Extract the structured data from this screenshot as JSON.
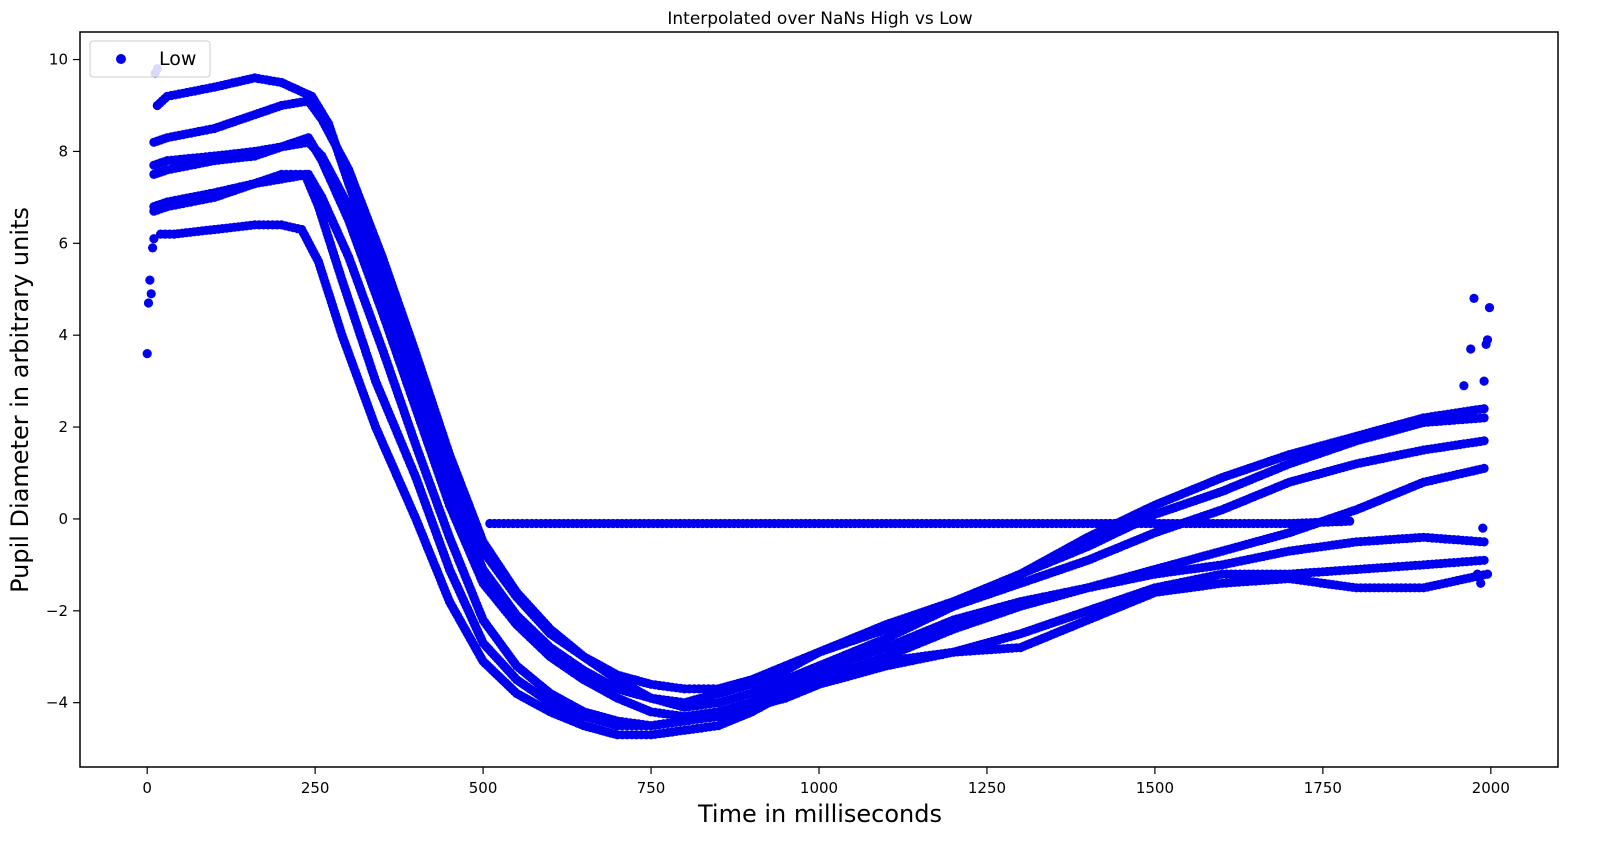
{
  "chart_data": {
    "type": "scatter",
    "title": "Interpolated over NaNs High vs Low",
    "xlabel": "Time in milliseconds",
    "ylabel": "Pupil Diameter in arbitrary units",
    "xlim": [
      -100,
      2100
    ],
    "ylim": [
      -5.4,
      10.6
    ],
    "xticks": [
      0,
      250,
      500,
      750,
      1000,
      1250,
      1500,
      1750,
      2000
    ],
    "yticks": [
      -4,
      -2,
      0,
      2,
      4,
      6,
      8,
      10
    ],
    "grid": false,
    "legend": {
      "position": "top-left",
      "entries": [
        "Low"
      ]
    },
    "marker_color": "#0000ee",
    "series": [
      {
        "name": "Low",
        "traces": [
          {
            "x": [
              15,
              30,
              100,
              160,
              200,
              245,
              270,
              300,
              350,
              400,
              450,
              500,
              550,
              600,
              650,
              700,
              750,
              800,
              850,
              900,
              950,
              1000,
              1100,
              1200,
              1300,
              1400,
              1500,
              1600,
              1700,
              1800,
              1900,
              1990
            ],
            "y": [
              9.0,
              9.2,
              9.4,
              9.6,
              9.5,
              9.2,
              8.6,
              7.3,
              5.3,
              3.2,
              1.0,
              -0.7,
              -1.7,
              -2.5,
              -3.0,
              -3.4,
              -3.6,
              -3.7,
              -3.7,
              -3.5,
              -3.2,
              -2.9,
              -2.3,
              -1.8,
              -1.2,
              -0.6,
              0.1,
              0.6,
              1.2,
              1.7,
              2.1,
              2.2
            ]
          },
          {
            "x": [
              10,
              30,
              100,
              160,
              200,
              240,
              260,
              300,
              350,
              400,
              450,
              500,
              550,
              600,
              650,
              700,
              750,
              800,
              850,
              900,
              950,
              1000,
              1100,
              1200,
              1300,
              1400,
              1500,
              1600,
              1700,
              1800,
              1900,
              1990
            ],
            "y": [
              8.2,
              8.3,
              8.5,
              8.8,
              9.0,
              9.1,
              8.7,
              7.6,
              5.7,
              3.6,
              1.4,
              -0.5,
              -1.6,
              -2.4,
              -3.0,
              -3.5,
              -3.9,
              -4.1,
              -4.0,
              -3.8,
              -3.5,
              -3.2,
              -2.6,
              -1.9,
              -1.2,
              -0.4,
              0.3,
              0.9,
              1.4,
              1.8,
              2.2,
              2.4
            ]
          },
          {
            "x": [
              10,
              30,
              100,
              160,
              200,
              240,
              260,
              300,
              350,
              400,
              450,
              500,
              550,
              600,
              650,
              700,
              750,
              800,
              850,
              900,
              950,
              1000,
              1100,
              1200,
              1300,
              1400,
              1500,
              1600,
              1700,
              1800,
              1900,
              1990
            ],
            "y": [
              7.7,
              7.8,
              7.9,
              8.0,
              8.1,
              8.2,
              7.9,
              6.8,
              4.8,
              2.7,
              0.6,
              -1.1,
              -2.1,
              -2.8,
              -3.3,
              -3.7,
              -3.9,
              -4.0,
              -3.8,
              -3.6,
              -3.3,
              -2.9,
              -2.4,
              -1.9,
              -1.4,
              -0.9,
              -0.3,
              0.2,
              0.8,
              1.2,
              1.5,
              1.7
            ]
          },
          {
            "x": [
              10,
              30,
              100,
              160,
              200,
              240,
              260,
              300,
              350,
              400,
              450,
              500,
              550,
              600,
              650,
              700,
              750,
              800,
              850,
              900,
              950,
              1000,
              1100,
              1200,
              1300,
              1400,
              1500,
              1600,
              1700,
              1800,
              1900,
              1990
            ],
            "y": [
              7.5,
              7.6,
              7.8,
              7.9,
              8.1,
              8.3,
              7.8,
              6.5,
              4.5,
              2.4,
              0.3,
              -1.4,
              -2.3,
              -3.0,
              -3.5,
              -3.9,
              -4.2,
              -4.3,
              -4.2,
              -4.0,
              -3.8,
              -3.5,
              -3.0,
              -2.4,
              -1.9,
              -1.5,
              -1.1,
              -0.7,
              -0.3,
              0.2,
              0.8,
              1.1
            ]
          },
          {
            "x": [
              10,
              30,
              100,
              160,
              200,
              240,
              260,
              300,
              350,
              400,
              450,
              500,
              550,
              600,
              650,
              700,
              750,
              800,
              850,
              900,
              950,
              1000,
              1100,
              1200,
              1300,
              1400,
              1500,
              1600,
              1700,
              1800,
              1900,
              1990
            ],
            "y": [
              6.8,
              6.9,
              7.1,
              7.3,
              7.4,
              7.5,
              7.0,
              5.7,
              3.7,
              1.6,
              -0.4,
              -2.2,
              -3.2,
              -3.8,
              -4.2,
              -4.4,
              -4.5,
              -4.4,
              -4.2,
              -4.0,
              -3.7,
              -3.3,
              -2.8,
              -2.2,
              -1.8,
              -1.5,
              -1.2,
              -1.0,
              -0.7,
              -0.5,
              -0.4,
              -0.5
            ]
          },
          {
            "x": [
              10,
              30,
              100,
              160,
              200,
              235,
              255,
              290,
              340,
              400,
              450,
              500,
              550,
              600,
              650,
              700,
              750,
              800,
              850,
              900,
              950,
              1000,
              1100,
              1200,
              1300,
              1400,
              1500,
              1600,
              1700,
              1800,
              1900,
              1990
            ],
            "y": [
              6.7,
              6.8,
              7.0,
              7.3,
              7.5,
              7.5,
              6.8,
              5.2,
              3.0,
              0.9,
              -1.1,
              -2.7,
              -3.5,
              -4.0,
              -4.3,
              -4.5,
              -4.5,
              -4.4,
              -4.3,
              -4.1,
              -3.9,
              -3.6,
              -3.2,
              -2.9,
              -2.5,
              -2.0,
              -1.5,
              -1.2,
              -1.2,
              -1.1,
              -1.0,
              -0.9
            ]
          },
          {
            "x": [
              20,
              40,
              100,
              160,
              200,
              230,
              255,
              290,
              340,
              400,
              450,
              500,
              550,
              600,
              650,
              700,
              750,
              800,
              850,
              900,
              950,
              1000,
              1100,
              1200,
              1300,
              1400,
              1500,
              1600,
              1700,
              1800,
              1900,
              1995
            ],
            "y": [
              6.2,
              6.2,
              6.3,
              6.4,
              6.4,
              6.3,
              5.6,
              4.0,
              2.0,
              0.0,
              -1.8,
              -3.1,
              -3.8,
              -4.2,
              -4.5,
              -4.7,
              -4.7,
              -4.6,
              -4.5,
              -4.2,
              -3.8,
              -3.4,
              -3.1,
              -2.9,
              -2.8,
              -2.2,
              -1.6,
              -1.4,
              -1.3,
              -1.5,
              -1.5,
              -1.2
            ]
          },
          {
            "x": [
              510,
              600,
              700,
              800,
              900,
              1000,
              1100,
              1200,
              1300,
              1400,
              1500,
              1600,
              1700,
              1790
            ],
            "y": [
              -0.1,
              -0.1,
              -0.1,
              -0.1,
              -0.1,
              -0.1,
              -0.1,
              -0.1,
              -0.1,
              -0.1,
              -0.1,
              -0.1,
              -0.1,
              -0.05
            ]
          },
          {
            "x": [
              0,
              2,
              4,
              6,
              8,
              10,
              12,
              15,
              1960,
              1970,
              1975,
              1980,
              1985,
              1988,
              1990,
              1993,
              1995,
              1998
            ],
            "y": [
              3.6,
              4.7,
              5.2,
              4.9,
              5.9,
              6.1,
              9.7,
              9.8,
              2.9,
              3.7,
              4.8,
              -1.2,
              -1.4,
              -0.2,
              3.0,
              3.8,
              3.9,
              4.6
            ]
          }
        ]
      }
    ]
  }
}
